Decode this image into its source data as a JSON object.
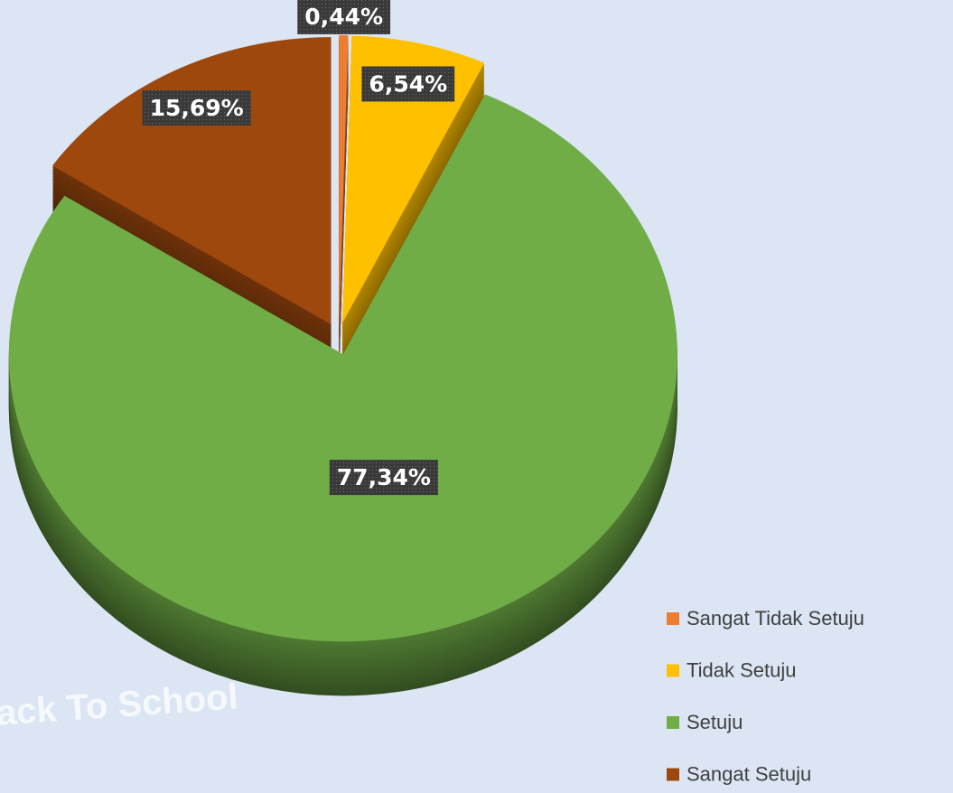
{
  "watermark": "Back To School",
  "chart_data": {
    "type": "pie",
    "categories": [
      "Sangat Tidak Setuju",
      "Tidak Setuju",
      "Setuju",
      "Sangat Setuju"
    ],
    "values": [
      0.44,
      6.54,
      77.34,
      15.69
    ],
    "value_labels": [
      "0,44%",
      "6,54%",
      "77,34%",
      "15,69%"
    ],
    "colors": [
      "#ed7d31",
      "#ffc000",
      "#70ad47",
      "#9e480e"
    ],
    "legend": "bottom-right"
  }
}
